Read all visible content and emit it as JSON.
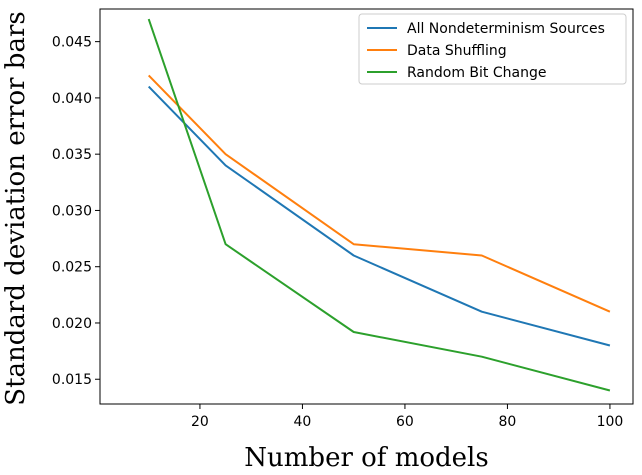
{
  "chart_data": {
    "type": "line",
    "title": "",
    "xlabel": "Number  of  models",
    "ylabel": "Standard deviation error bars",
    "xlim": [
      0.5,
      104.5
    ],
    "ylim": [
      0.0128,
      0.0479
    ],
    "xticks": [
      20,
      40,
      60,
      80,
      100
    ],
    "yticks": [
      0.015,
      0.02,
      0.025,
      0.03,
      0.035,
      0.04,
      0.045
    ],
    "xtick_labels": [
      "20",
      "40",
      "60",
      "80",
      "100"
    ],
    "ytick_labels": [
      "0.015",
      "0.020",
      "0.025",
      "0.030",
      "0.035",
      "0.040",
      "0.045"
    ],
    "grid": false,
    "legend_position": "top-right",
    "x": [
      10,
      25,
      50,
      75,
      100
    ],
    "series": [
      {
        "name": "All Nondeterminism Sources",
        "color": "#1f77b4",
        "values": [
          0.041,
          0.034,
          0.026,
          0.021,
          0.018
        ]
      },
      {
        "name": "Data Shuffling",
        "color": "#ff7f0e",
        "values": [
          0.042,
          0.035,
          0.027,
          0.026,
          0.021
        ]
      },
      {
        "name": "Random Bit Change",
        "color": "#2ca02c",
        "values": [
          0.047,
          0.027,
          0.0192,
          0.017,
          0.014
        ]
      }
    ]
  }
}
